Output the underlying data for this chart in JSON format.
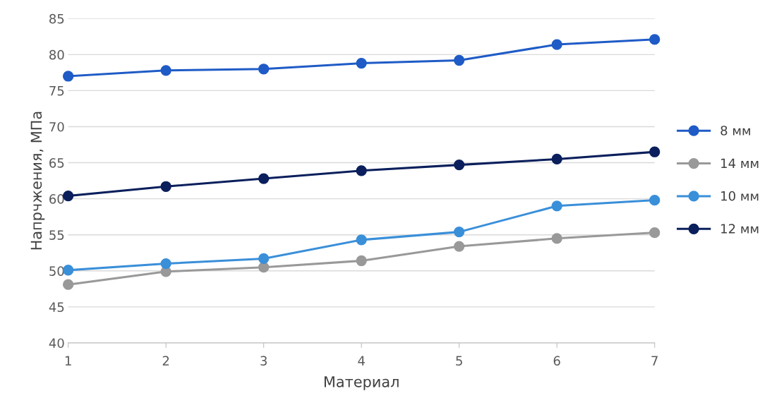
{
  "chart_data": {
    "type": "line",
    "xlabel": "Материал",
    "ylabel": "Напрчжения, МПа",
    "x": [
      1,
      2,
      3,
      4,
      5,
      6,
      7
    ],
    "xlim": [
      1,
      7
    ],
    "xticks": [
      1,
      2,
      3,
      4,
      5,
      6,
      7
    ],
    "ylim": [
      40,
      85
    ],
    "yticks": [
      40,
      45,
      50,
      55,
      60,
      65,
      70,
      75,
      80,
      85
    ],
    "grid": "y",
    "legend": "right",
    "marker": "circle",
    "line_style": "solid",
    "series": [
      {
        "name": "8 мм",
        "color": "#1f5bc6",
        "values": [
          77.0,
          77.8,
          78.0,
          78.8,
          79.2,
          81.4,
          82.1
        ]
      },
      {
        "name": "14 мм",
        "color": "#999999",
        "values": [
          48.1,
          49.9,
          50.5,
          51.4,
          53.4,
          54.5,
          55.3
        ]
      },
      {
        "name": "10 мм",
        "color": "#3a8fd9",
        "values": [
          50.1,
          51.0,
          51.7,
          54.3,
          55.4,
          59.0,
          59.8
        ]
      },
      {
        "name": "12 мм",
        "color": "#0a1f5c",
        "values": [
          60.4,
          61.7,
          62.8,
          63.9,
          64.7,
          65.5,
          66.5
        ]
      }
    ]
  }
}
